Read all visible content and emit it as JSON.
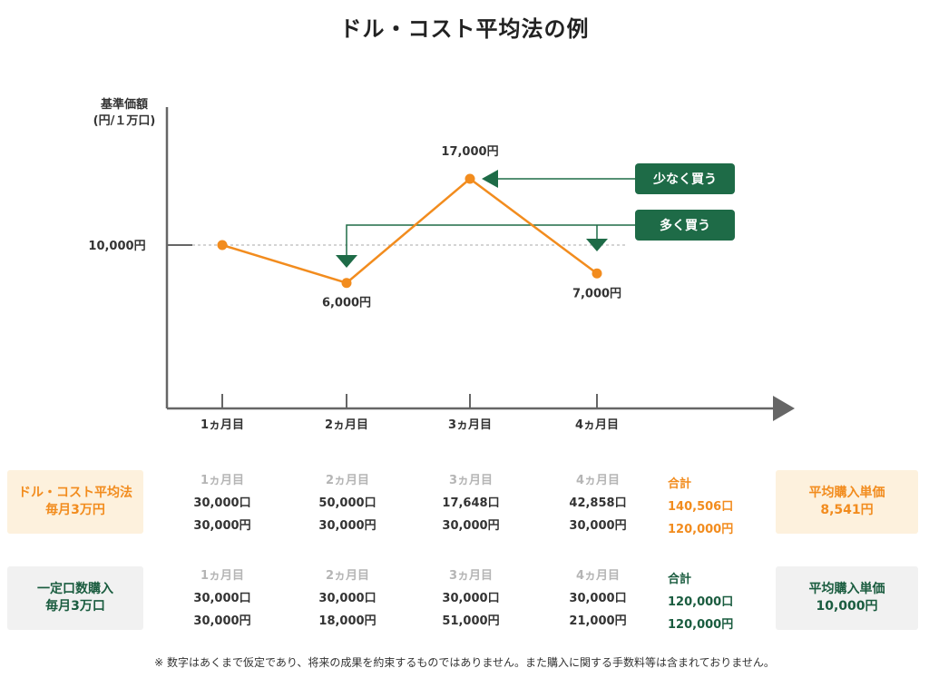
{
  "title": "ドル・コスト平均法の例",
  "chart_data": {
    "type": "line",
    "ylabel": [
      "基準価額",
      "(円/１万口)"
    ],
    "categories": [
      "1ヵ月目",
      "2ヵ月目",
      "3ヵ月目",
      "4ヵ月目"
    ],
    "values": [
      10000,
      6000,
      17000,
      7000
    ],
    "point_labels": [
      "",
      "6,000円",
      "17,000円",
      "7,000円"
    ],
    "reference_value": 10000,
    "reference_label": "10,000円",
    "line_color": "#f28c1e",
    "annotations": [
      {
        "text": "少なく買う",
        "color": "#1e6b47"
      },
      {
        "text": "多く買う",
        "color": "#1e6b47"
      }
    ]
  },
  "plans": [
    {
      "label_lines": [
        "ドル・コスト平均法",
        "毎月3万円"
      ],
      "months": [
        {
          "month": "1ヵ月目",
          "units": "30,000口",
          "amount": "30,000円"
        },
        {
          "month": "2ヵ月目",
          "units": "50,000口",
          "amount": "30,000円"
        },
        {
          "month": "3ヵ月目",
          "units": "17,648口",
          "amount": "30,000円"
        },
        {
          "month": "4ヵ月目",
          "units": "42,858口",
          "amount": "30,000円"
        }
      ],
      "total": {
        "label": "合計",
        "units": "140,506口",
        "amount": "120,000円"
      },
      "avg_title": "平均購入単価",
      "avg_value": "8,541円"
    },
    {
      "label_lines": [
        "一定口数購入",
        "毎月3万口"
      ],
      "months": [
        {
          "month": "1ヵ月目",
          "units": "30,000口",
          "amount": "30,000円"
        },
        {
          "month": "2ヵ月目",
          "units": "30,000口",
          "amount": "18,000円"
        },
        {
          "month": "3ヵ月目",
          "units": "30,000口",
          "amount": "51,000円"
        },
        {
          "month": "4ヵ月目",
          "units": "30,000口",
          "amount": "21,000円"
        }
      ],
      "total": {
        "label": "合計",
        "units": "120,000口",
        "amount": "120,000円"
      },
      "avg_title": "平均購入単価",
      "avg_value": "10,000円"
    }
  ],
  "note": "※ 数字はあくまで仮定であり、将来の成果を約束するものではありません。また購入に関する手数料等は含まれておりません。"
}
